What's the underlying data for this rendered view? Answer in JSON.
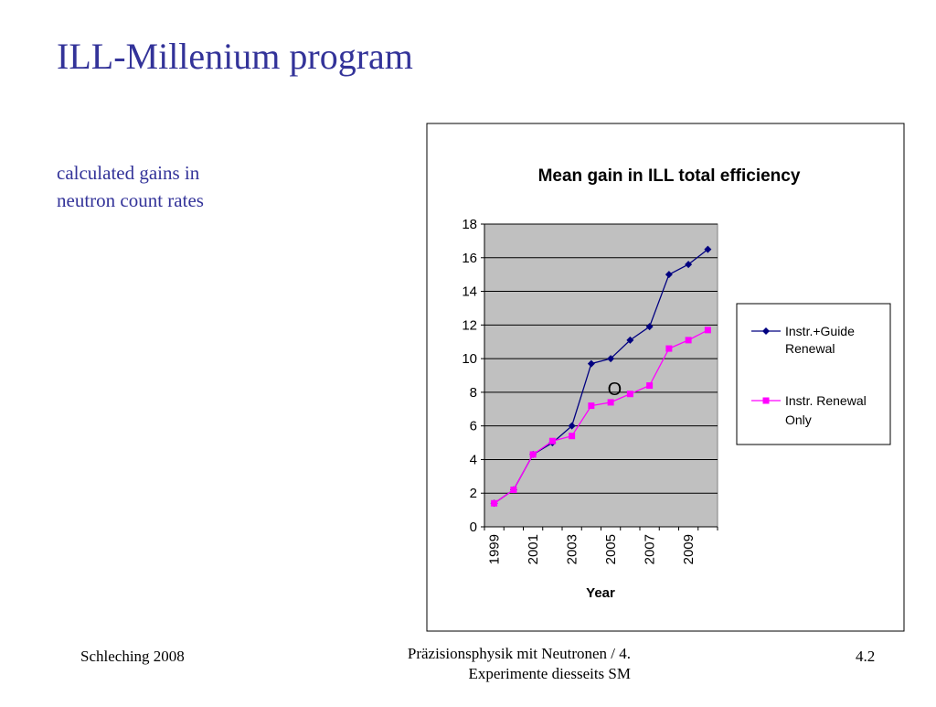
{
  "slide": {
    "title": "ILL-Millenium program",
    "subtitle": "calculated gains in neutron count rates",
    "footer_left": "Schleching 2008",
    "footer_center_line1": "Präzisionsphysik mit Neutronen / 4.",
    "footer_center_line2": "Experimente diesseits SM",
    "footer_right": "4.2"
  },
  "chart_data": {
    "type": "line",
    "title": "Mean gain in ILL total efficiency",
    "xlabel": "Year",
    "ylabel": "",
    "x": [
      1999,
      2000,
      2001,
      2002,
      2003,
      2004,
      2005,
      2006,
      2007,
      2008,
      2009,
      2010
    ],
    "x_tick_labels": [
      "1999",
      "2001",
      "2003",
      "2005",
      "2007",
      "2009"
    ],
    "y_ticks": [
      0,
      2,
      4,
      6,
      8,
      10,
      12,
      14,
      16,
      18
    ],
    "ylim": [
      0,
      18
    ],
    "grid": true,
    "legend_position": "right",
    "plot_background": "#c0c0c0",
    "series": [
      {
        "name": "Instr.+Guide Renewal",
        "color": "#000080",
        "marker": "diamond",
        "values": [
          1.4,
          2.2,
          4.3,
          5.0,
          6.0,
          9.7,
          10.0,
          11.1,
          11.9,
          15.0,
          15.6,
          16.5
        ]
      },
      {
        "name": "Instr. Renewal Only",
        "color": "#ff00ff",
        "marker": "square",
        "values": [
          1.4,
          2.2,
          4.3,
          5.1,
          5.4,
          7.2,
          7.4,
          7.9,
          8.4,
          10.6,
          11.1,
          11.7
        ]
      }
    ],
    "annotation": {
      "text": "O",
      "x": 2005.2,
      "y": 8.2
    }
  }
}
